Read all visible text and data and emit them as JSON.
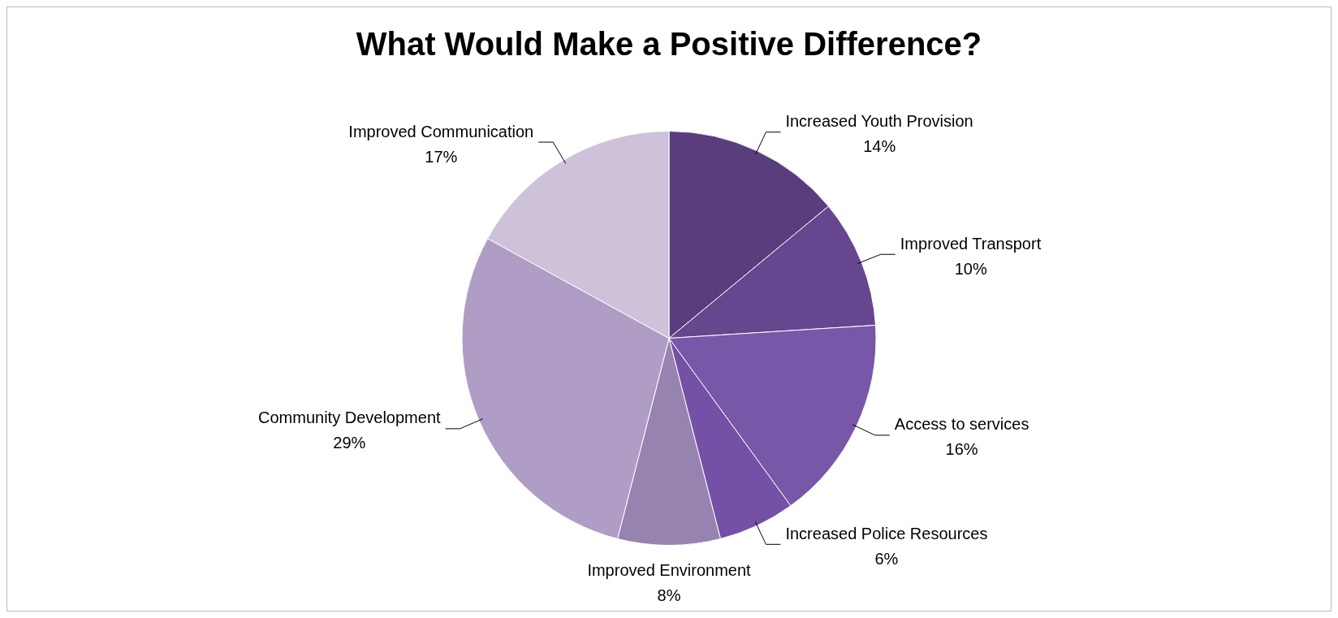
{
  "chart_data": {
    "type": "pie",
    "title": "What Would Make a Positive Difference?",
    "categories": [
      "Increased Youth Provision",
      "Improved Transport",
      "Access to services",
      "Increased Police Resources",
      "Improved Environment",
      "Community Development",
      "Improved Communication"
    ],
    "values": [
      14,
      10,
      16,
      6,
      8,
      29,
      17
    ],
    "value_labels": [
      "14%",
      "10%",
      "16%",
      "6%",
      "8%",
      "29%",
      "17%"
    ],
    "colors": [
      "#593d7c",
      "#65468f",
      "#7856a8",
      "#7450a6",
      "#9683b0",
      "#b09dc6",
      "#cdc2da"
    ],
    "legend": false
  }
}
